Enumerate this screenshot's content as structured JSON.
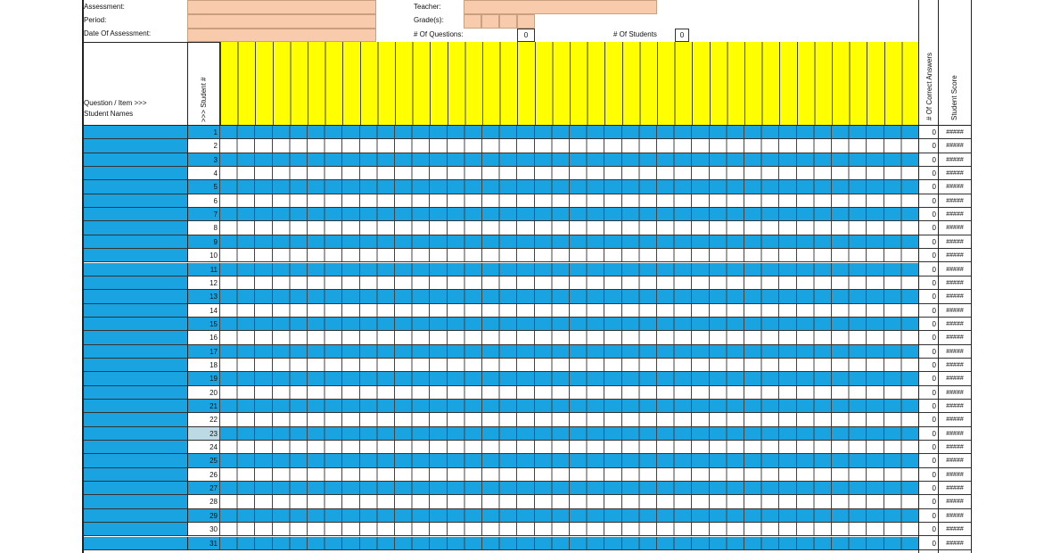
{
  "header": {
    "assessment_label": "Assessment:",
    "period_label": "Period:",
    "date_label": "Date Of Assessment:",
    "teacher_label": "Teacher:",
    "grades_label": "Grade(s):",
    "questions_label": "# Of Questions:",
    "questions_value": 0,
    "students_label": "# Of Students",
    "students_value": 0
  },
  "columns": {
    "question_item": "Question / Item >>>",
    "student_names": "Student Names",
    "student_number": ">>> Student #",
    "correct_answers": "# Of Correct Answers",
    "student_score": "Student Score"
  },
  "rows": [
    {
      "number": 1,
      "correct": 0,
      "score": "#####"
    },
    {
      "number": 2,
      "correct": 0,
      "score": "#####"
    },
    {
      "number": 3,
      "correct": 0,
      "score": "#####"
    },
    {
      "number": 4,
      "correct": 0,
      "score": "#####"
    },
    {
      "number": 5,
      "correct": 0,
      "score": "#####"
    },
    {
      "number": 6,
      "correct": 0,
      "score": "#####"
    },
    {
      "number": 7,
      "correct": 0,
      "score": "#####"
    },
    {
      "number": 8,
      "correct": 0,
      "score": "#####"
    },
    {
      "number": 9,
      "correct": 0,
      "score": "#####"
    },
    {
      "number": 10,
      "correct": 0,
      "score": "#####"
    },
    {
      "number": 11,
      "correct": 0,
      "score": "#####"
    },
    {
      "number": 12,
      "correct": 0,
      "score": "#####"
    },
    {
      "number": 13,
      "correct": 0,
      "score": "#####"
    },
    {
      "number": 14,
      "correct": 0,
      "score": "#####"
    },
    {
      "number": 15,
      "correct": 0,
      "score": "#####"
    },
    {
      "number": 16,
      "correct": 0,
      "score": "#####"
    },
    {
      "number": 17,
      "correct": 0,
      "score": "#####"
    },
    {
      "number": 18,
      "correct": 0,
      "score": "#####"
    },
    {
      "number": 19,
      "correct": 0,
      "score": "#####"
    },
    {
      "number": 20,
      "correct": 0,
      "score": "#####"
    },
    {
      "number": 21,
      "correct": 0,
      "score": "#####"
    },
    {
      "number": 22,
      "correct": 0,
      "score": "#####"
    },
    {
      "number": 23,
      "correct": 0,
      "score": "#####"
    },
    {
      "number": 24,
      "correct": 0,
      "score": "#####"
    },
    {
      "number": 25,
      "correct": 0,
      "score": "#####"
    },
    {
      "number": 26,
      "correct": 0,
      "score": "#####"
    },
    {
      "number": 27,
      "correct": 0,
      "score": "#####"
    },
    {
      "number": 28,
      "correct": 0,
      "score": "#####"
    },
    {
      "number": 29,
      "correct": 0,
      "score": "#####"
    },
    {
      "number": 30,
      "correct": 0,
      "score": "#####"
    },
    {
      "number": 31,
      "correct": 0,
      "score": "#####"
    }
  ]
}
